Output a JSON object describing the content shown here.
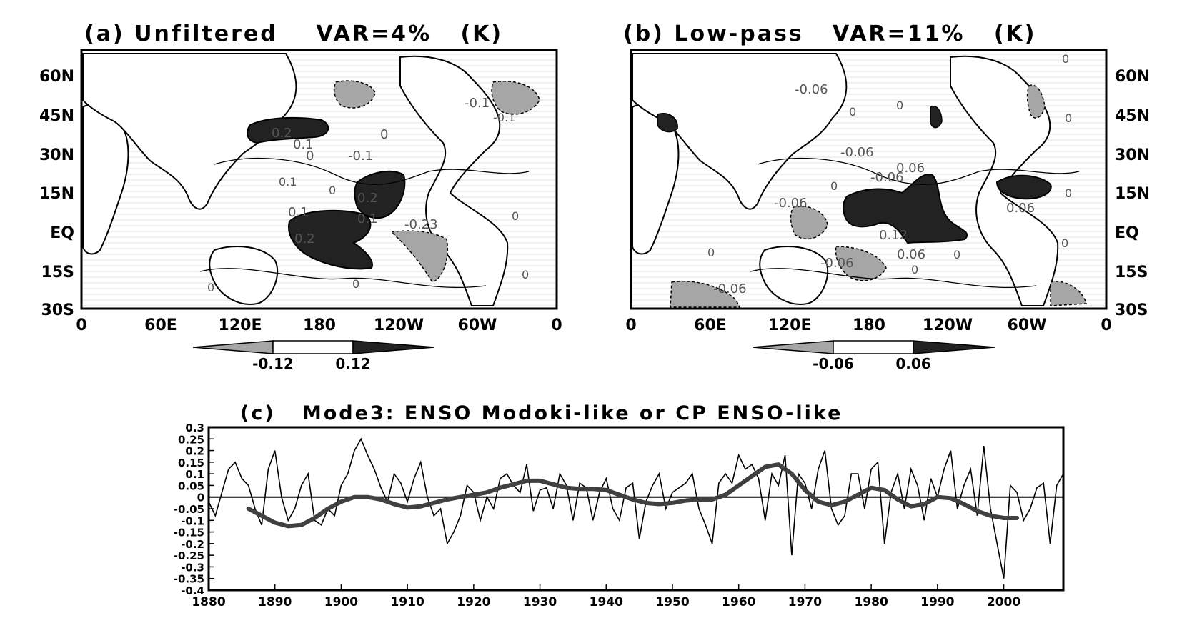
{
  "chart_data": [
    {
      "type": "heatmap",
      "panel": "a",
      "title": "(a) Unfiltered",
      "var_text": "VAR=4%",
      "unit": "(K)",
      "y_ticks": [
        "60N",
        "45N",
        "30N",
        "15N",
        "EQ",
        "15S",
        "30S"
      ],
      "x_ticks": [
        "0",
        "60E",
        "120E",
        "180",
        "120W",
        "60W",
        "0"
      ],
      "shading_legend": {
        "low": "-0.12",
        "high": "0.12"
      },
      "contour_labels": [
        "0.2",
        "0.1",
        "0",
        "-0.1",
        "0",
        "0.2",
        "0.1",
        "-0.1",
        "0.1",
        "0.2",
        "0.1",
        "-0.23",
        "0",
        "0",
        "0",
        "-0.1",
        "0",
        "0",
        "0"
      ],
      "colors": {
        "positive": "#2a2a2a",
        "negative": "#a6a6a6"
      }
    },
    {
      "type": "heatmap",
      "panel": "b",
      "title": "(b) Low-pass",
      "var_text": "VAR=11%",
      "unit": "(K)",
      "y_ticks": [
        "60N",
        "45N",
        "30N",
        "15N",
        "EQ",
        "15S",
        "30S"
      ],
      "x_ticks": [
        "0",
        "60E",
        "120E",
        "180",
        "120W",
        "60W",
        "0"
      ],
      "shading_legend": {
        "low": "-0.06",
        "high": "0.06"
      },
      "contour_labels": [
        "-0.06",
        "0",
        "0",
        "0",
        "-0.06",
        "-0.06",
        "0.06",
        "-0.06",
        "0",
        "0.12",
        "0.06",
        "-0.06",
        "0",
        "0",
        "-0.06",
        "0",
        "0",
        "0.06",
        "0",
        "0"
      ],
      "colors": {
        "positive": "#2a2a2a",
        "negative": "#a6a6a6"
      }
    },
    {
      "type": "line",
      "panel": "c",
      "title": "(c)   Mode3: ENSO Modoki-like or CP ENSO-like",
      "x_ticks": [
        "1880",
        "1890",
        "1900",
        "1910",
        "1920",
        "1930",
        "1940",
        "1950",
        "1960",
        "1970",
        "1980",
        "1990",
        "2000"
      ],
      "y_ticks": [
        "0.3",
        "0.25",
        "0.2",
        "0.15",
        "0.1",
        "0.05",
        "0",
        "-0.05",
        "-0.1",
        "-0.15",
        "-0.2",
        "-0.25",
        "-0.3",
        "-0.35",
        "-0.4"
      ],
      "xlim": [
        1880,
        2009
      ],
      "ylim": [
        -0.4,
        0.3
      ],
      "series": [
        {
          "role": "monthly",
          "color": "#000000",
          "x": [
            1880,
            1881,
            1882,
            1883,
            1884,
            1885,
            1886,
            1887,
            1888,
            1889,
            1890,
            1891,
            1892,
            1893,
            1894,
            1895,
            1896,
            1897,
            1898,
            1899,
            1900,
            1901,
            1902,
            1903,
            1904,
            1905,
            1906,
            1907,
            1908,
            1909,
            1910,
            1911,
            1912,
            1913,
            1914,
            1915,
            1916,
            1917,
            1918,
            1919,
            1920,
            1921,
            1922,
            1923,
            1924,
            1925,
            1926,
            1927,
            1928,
            1929,
            1930,
            1931,
            1932,
            1933,
            1934,
            1935,
            1936,
            1937,
            1938,
            1939,
            1940,
            1941,
            1942,
            1943,
            1944,
            1945,
            1946,
            1947,
            1948,
            1949,
            1950,
            1951,
            1952,
            1953,
            1954,
            1955,
            1956,
            1957,
            1958,
            1959,
            1960,
            1961,
            1962,
            1963,
            1964,
            1965,
            1966,
            1967,
            1968,
            1969,
            1970,
            1971,
            1972,
            1973,
            1974,
            1975,
            1976,
            1977,
            1978,
            1979,
            1980,
            1981,
            1982,
            1983,
            1984,
            1985,
            1986,
            1987,
            1988,
            1989,
            1990,
            1991,
            1992,
            1993,
            1994,
            1995,
            1996,
            1997,
            1998,
            1999,
            2000,
            2001,
            2002,
            2003,
            2004,
            2005,
            2006,
            2007,
            2008,
            2009
          ],
          "y": [
            -0.02,
            -0.08,
            0.02,
            0.12,
            0.15,
            0.08,
            0.05,
            -0.05,
            -0.12,
            0.12,
            0.2,
            0.0,
            -0.1,
            -0.05,
            0.05,
            0.1,
            -0.1,
            -0.12,
            -0.05,
            -0.08,
            0.05,
            0.1,
            0.2,
            0.25,
            0.18,
            0.12,
            0.04,
            -0.02,
            0.1,
            0.06,
            -0.02,
            0.08,
            0.15,
            0.0,
            -0.08,
            -0.05,
            -0.2,
            -0.15,
            -0.08,
            0.05,
            0.02,
            -0.1,
            0.0,
            -0.05,
            0.08,
            0.1,
            0.05,
            0.02,
            0.14,
            -0.06,
            0.03,
            0.04,
            -0.05,
            0.1,
            0.05,
            -0.1,
            0.06,
            0.04,
            -0.1,
            0.02,
            0.08,
            -0.05,
            -0.1,
            0.04,
            0.06,
            -0.18,
            -0.02,
            0.05,
            0.1,
            -0.05,
            0.02,
            0.04,
            0.06,
            0.1,
            -0.05,
            -0.12,
            -0.2,
            0.06,
            0.1,
            0.06,
            0.18,
            0.12,
            0.14,
            0.08,
            -0.1,
            0.1,
            0.05,
            0.18,
            -0.25,
            0.1,
            0.06,
            -0.05,
            0.12,
            0.2,
            -0.05,
            -0.12,
            -0.08,
            0.1,
            0.1,
            -0.05,
            0.12,
            0.15,
            -0.2,
            0.02,
            0.1,
            -0.05,
            0.12,
            0.05,
            -0.1,
            0.08,
            0.0,
            0.12,
            0.2,
            -0.05,
            0.05,
            0.12,
            -0.08,
            0.22,
            -0.05,
            -0.2,
            -0.35,
            0.05,
            0.02,
            -0.1,
            -0.05,
            0.04,
            0.06,
            -0.2,
            0.05,
            0.1
          ]
        },
        {
          "role": "low-pass",
          "color": "#404040",
          "x": [
            1886,
            1888,
            1890,
            1892,
            1894,
            1896,
            1898,
            1900,
            1902,
            1904,
            1906,
            1908,
            1910,
            1912,
            1914,
            1916,
            1918,
            1920,
            1922,
            1924,
            1926,
            1928,
            1930,
            1932,
            1934,
            1936,
            1938,
            1940,
            1942,
            1944,
            1946,
            1948,
            1950,
            1952,
            1954,
            1956,
            1958,
            1960,
            1962,
            1964,
            1966,
            1968,
            1970,
            1972,
            1974,
            1976,
            1978,
            1980,
            1982,
            1984,
            1986,
            1988,
            1990,
            1992,
            1994,
            1996,
            1998,
            2000,
            2002
          ],
          "y": [
            -0.05,
            -0.08,
            -0.11,
            -0.125,
            -0.12,
            -0.09,
            -0.05,
            -0.02,
            0.0,
            0.0,
            -0.01,
            -0.03,
            -0.045,
            -0.04,
            -0.025,
            -0.01,
            0.0,
            0.01,
            0.02,
            0.04,
            0.055,
            0.07,
            0.07,
            0.055,
            0.04,
            0.035,
            0.035,
            0.03,
            0.01,
            -0.01,
            -0.025,
            -0.03,
            -0.025,
            -0.015,
            -0.01,
            -0.01,
            0.01,
            0.05,
            0.09,
            0.13,
            0.14,
            0.1,
            0.03,
            -0.02,
            -0.035,
            -0.02,
            0.01,
            0.04,
            0.03,
            -0.01,
            -0.04,
            -0.03,
            0.0,
            -0.005,
            -0.03,
            -0.06,
            -0.08,
            -0.09,
            -0.09
          ]
        }
      ]
    }
  ]
}
